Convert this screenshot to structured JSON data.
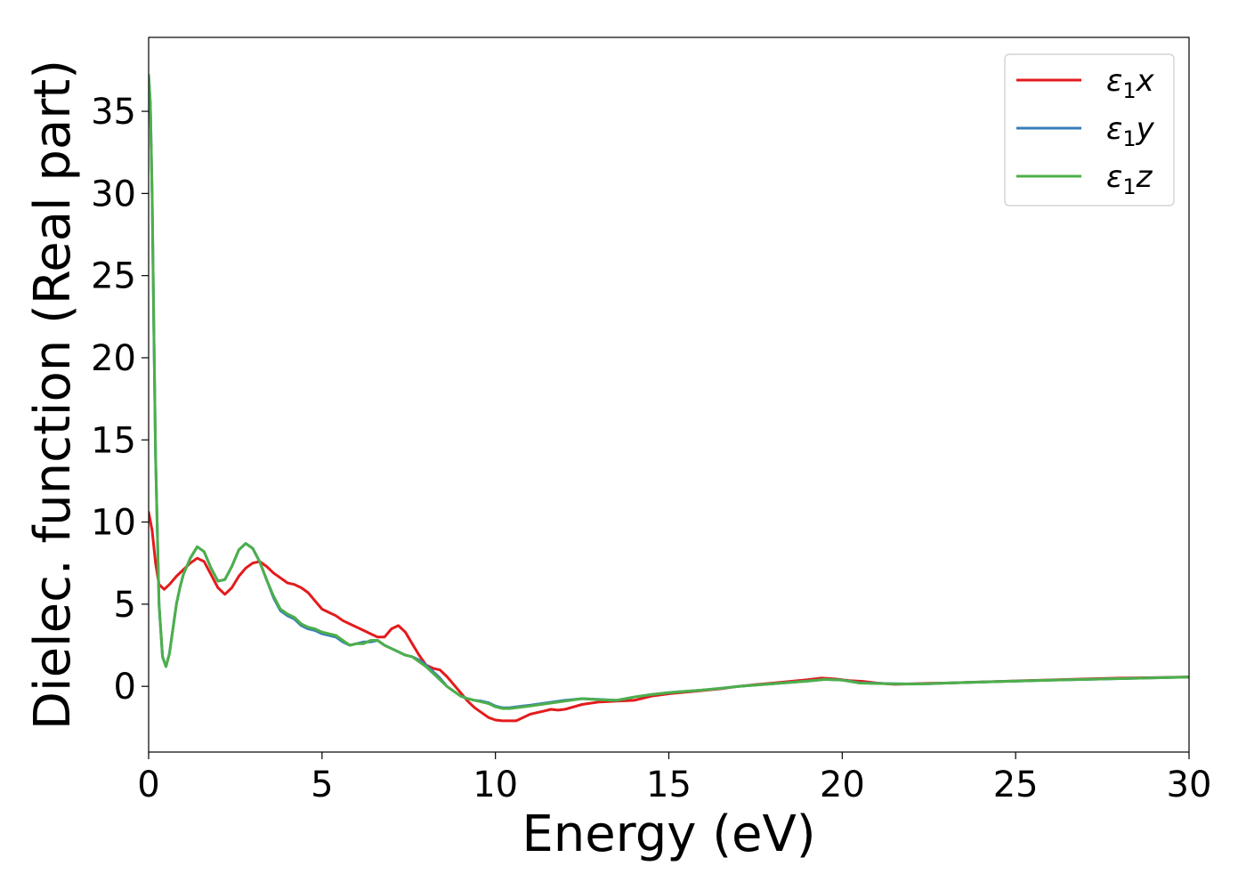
{
  "chart_data": {
    "type": "line",
    "xlabel": "Energy (eV)",
    "ylabel": "Dielec. function (Real part)",
    "xlim": [
      0,
      30
    ],
    "ylim": [
      -4,
      39.5
    ],
    "xticks": [
      0,
      5,
      10,
      15,
      20,
      25,
      30
    ],
    "yticks": [
      0,
      5,
      10,
      15,
      20,
      25,
      30,
      35
    ],
    "grid": false,
    "legend_position": "top-right",
    "series": [
      {
        "name": "ε₁x",
        "label_main": "ε",
        "label_sub": "1",
        "label_tail": "x",
        "color": "#e41a1c",
        "x": [
          0,
          0.1,
          0.2,
          0.3,
          0.45,
          0.6,
          0.8,
          1.0,
          1.2,
          1.4,
          1.6,
          1.8,
          2.0,
          2.2,
          2.4,
          2.6,
          2.8,
          3.0,
          3.2,
          3.4,
          3.6,
          3.8,
          4.0,
          4.2,
          4.4,
          4.6,
          4.8,
          5.0,
          5.2,
          5.4,
          5.6,
          5.8,
          6.0,
          6.2,
          6.4,
          6.6,
          6.8,
          7.0,
          7.2,
          7.4,
          7.6,
          7.8,
          8.0,
          8.2,
          8.4,
          8.6,
          8.8,
          9.0,
          9.2,
          9.4,
          9.6,
          9.8,
          10.0,
          10.2,
          10.4,
          10.6,
          10.8,
          11.0,
          11.2,
          11.4,
          11.6,
          11.8,
          12.0,
          12.5,
          13.0,
          13.5,
          14.0,
          14.5,
          15.0,
          15.5,
          16.0,
          16.5,
          17.0,
          17.5,
          18.0,
          18.5,
          19.0,
          19.4,
          19.8,
          20.2,
          20.6,
          21.0,
          21.5,
          22.0,
          22.5,
          23.0,
          24.0,
          25.0,
          26.0,
          27.0,
          28.0,
          29.0,
          30.0
        ],
        "y": [
          10.6,
          9.5,
          7.5,
          6.2,
          5.9,
          6.2,
          6.7,
          7.1,
          7.5,
          7.8,
          7.6,
          6.8,
          6.0,
          5.6,
          6.0,
          6.7,
          7.2,
          7.5,
          7.6,
          7.3,
          6.9,
          6.6,
          6.3,
          6.2,
          6.0,
          5.7,
          5.2,
          4.7,
          4.5,
          4.3,
          4.0,
          3.8,
          3.6,
          3.4,
          3.2,
          3.0,
          3.0,
          3.5,
          3.7,
          3.3,
          2.6,
          1.9,
          1.3,
          1.1,
          1.0,
          0.6,
          0.1,
          -0.4,
          -0.9,
          -1.3,
          -1.6,
          -1.9,
          -2.05,
          -2.1,
          -2.1,
          -2.1,
          -1.9,
          -1.7,
          -1.6,
          -1.5,
          -1.4,
          -1.45,
          -1.4,
          -1.1,
          -0.95,
          -0.9,
          -0.85,
          -0.6,
          -0.45,
          -0.35,
          -0.25,
          -0.15,
          0.0,
          0.1,
          0.2,
          0.3,
          0.4,
          0.5,
          0.45,
          0.35,
          0.3,
          0.2,
          0.12,
          0.15,
          0.18,
          0.2,
          0.27,
          0.33,
          0.39,
          0.45,
          0.5,
          0.53,
          0.57
        ]
      },
      {
        "name": "ε₁y",
        "label_main": "ε",
        "label_sub": "1",
        "label_tail": "y",
        "color": "#377eb8",
        "x": [
          0,
          0.05,
          0.1,
          0.15,
          0.2,
          0.3,
          0.4,
          0.5,
          0.6,
          0.7,
          0.8,
          0.9,
          1.0,
          1.2,
          1.4,
          1.6,
          1.8,
          2.0,
          2.2,
          2.4,
          2.6,
          2.8,
          3.0,
          3.2,
          3.4,
          3.6,
          3.8,
          4.0,
          4.2,
          4.4,
          4.6,
          4.8,
          5.0,
          5.2,
          5.4,
          5.6,
          5.8,
          6.0,
          6.2,
          6.4,
          6.6,
          6.8,
          7.0,
          7.2,
          7.4,
          7.6,
          7.8,
          8.0,
          8.2,
          8.4,
          8.6,
          8.8,
          9.0,
          9.2,
          9.4,
          9.6,
          9.8,
          10.0,
          10.2,
          10.4,
          10.6,
          10.8,
          11.0,
          11.5,
          12.0,
          12.5,
          13.0,
          13.5,
          14.0,
          14.5,
          15.0,
          15.5,
          16.0,
          16.5,
          17.0,
          17.5,
          18.0,
          18.5,
          19.0,
          19.5,
          20.0,
          20.5,
          21.0,
          21.5,
          22.0,
          22.5,
          23.0,
          24.0,
          25.0,
          26.0,
          27.0,
          28.0,
          29.0,
          30.0
        ],
        "y": [
          37.2,
          35.5,
          30.0,
          22.0,
          14.0,
          5.0,
          1.8,
          1.2,
          2.0,
          3.5,
          5.0,
          6.0,
          6.8,
          7.8,
          8.5,
          8.2,
          7.2,
          6.4,
          6.5,
          7.3,
          8.3,
          8.7,
          8.4,
          7.6,
          6.5,
          5.4,
          4.6,
          4.3,
          4.1,
          3.7,
          3.5,
          3.4,
          3.2,
          3.1,
          3.0,
          2.7,
          2.5,
          2.6,
          2.7,
          2.7,
          2.8,
          2.5,
          2.3,
          2.1,
          1.9,
          1.8,
          1.6,
          1.3,
          0.9,
          0.5,
          0.0,
          -0.3,
          -0.6,
          -0.75,
          -0.85,
          -0.9,
          -1.0,
          -1.2,
          -1.3,
          -1.3,
          -1.25,
          -1.2,
          -1.15,
          -1.0,
          -0.85,
          -0.75,
          -0.8,
          -0.85,
          -0.65,
          -0.5,
          -0.38,
          -0.3,
          -0.22,
          -0.12,
          0.0,
          0.08,
          0.16,
          0.24,
          0.32,
          0.42,
          0.38,
          0.22,
          0.18,
          0.16,
          0.15,
          0.16,
          0.2,
          0.26,
          0.32,
          0.37,
          0.42,
          0.47,
          0.52,
          0.56
        ]
      },
      {
        "name": "ε₁z",
        "label_main": "ε",
        "label_sub": "1",
        "label_tail": "z",
        "color": "#4daf4a",
        "x": [
          0,
          0.05,
          0.1,
          0.15,
          0.2,
          0.3,
          0.4,
          0.5,
          0.6,
          0.7,
          0.8,
          0.9,
          1.0,
          1.2,
          1.4,
          1.6,
          1.8,
          2.0,
          2.2,
          2.4,
          2.6,
          2.8,
          3.0,
          3.2,
          3.4,
          3.6,
          3.8,
          4.0,
          4.2,
          4.4,
          4.6,
          4.8,
          5.0,
          5.2,
          5.4,
          5.6,
          5.8,
          6.0,
          6.2,
          6.4,
          6.6,
          6.8,
          7.0,
          7.2,
          7.4,
          7.6,
          7.8,
          8.0,
          8.2,
          8.4,
          8.6,
          8.8,
          9.0,
          9.2,
          9.4,
          9.6,
          9.8,
          10.0,
          10.2,
          10.4,
          10.6,
          10.8,
          11.0,
          11.5,
          12.0,
          12.5,
          13.0,
          13.5,
          14.0,
          14.5,
          15.0,
          15.5,
          16.0,
          16.5,
          17.0,
          17.5,
          18.0,
          18.5,
          19.0,
          19.5,
          20.0,
          20.5,
          21.0,
          21.5,
          22.0,
          22.5,
          23.0,
          24.0,
          25.0,
          26.0,
          27.0,
          28.0,
          29.0,
          30.0
        ],
        "y": [
          37.2,
          35.5,
          30.0,
          22.0,
          14.0,
          5.0,
          1.8,
          1.2,
          2.0,
          3.5,
          5.0,
          6.0,
          6.8,
          7.8,
          8.5,
          8.2,
          7.2,
          6.4,
          6.5,
          7.3,
          8.3,
          8.7,
          8.4,
          7.6,
          6.5,
          5.5,
          4.7,
          4.4,
          4.2,
          3.8,
          3.6,
          3.5,
          3.3,
          3.2,
          3.1,
          2.8,
          2.5,
          2.6,
          2.6,
          2.8,
          2.8,
          2.5,
          2.3,
          2.1,
          1.9,
          1.8,
          1.5,
          1.2,
          0.8,
          0.4,
          0.0,
          -0.3,
          -0.6,
          -0.75,
          -0.85,
          -0.95,
          -1.05,
          -1.25,
          -1.35,
          -1.35,
          -1.3,
          -1.25,
          -1.2,
          -1.05,
          -0.9,
          -0.75,
          -0.82,
          -0.85,
          -0.65,
          -0.5,
          -0.38,
          -0.3,
          -0.22,
          -0.12,
          0.0,
          0.08,
          0.16,
          0.24,
          0.32,
          0.42,
          0.38,
          0.2,
          0.17,
          0.15,
          0.14,
          0.16,
          0.2,
          0.26,
          0.32,
          0.37,
          0.42,
          0.47,
          0.52,
          0.56
        ]
      }
    ]
  }
}
